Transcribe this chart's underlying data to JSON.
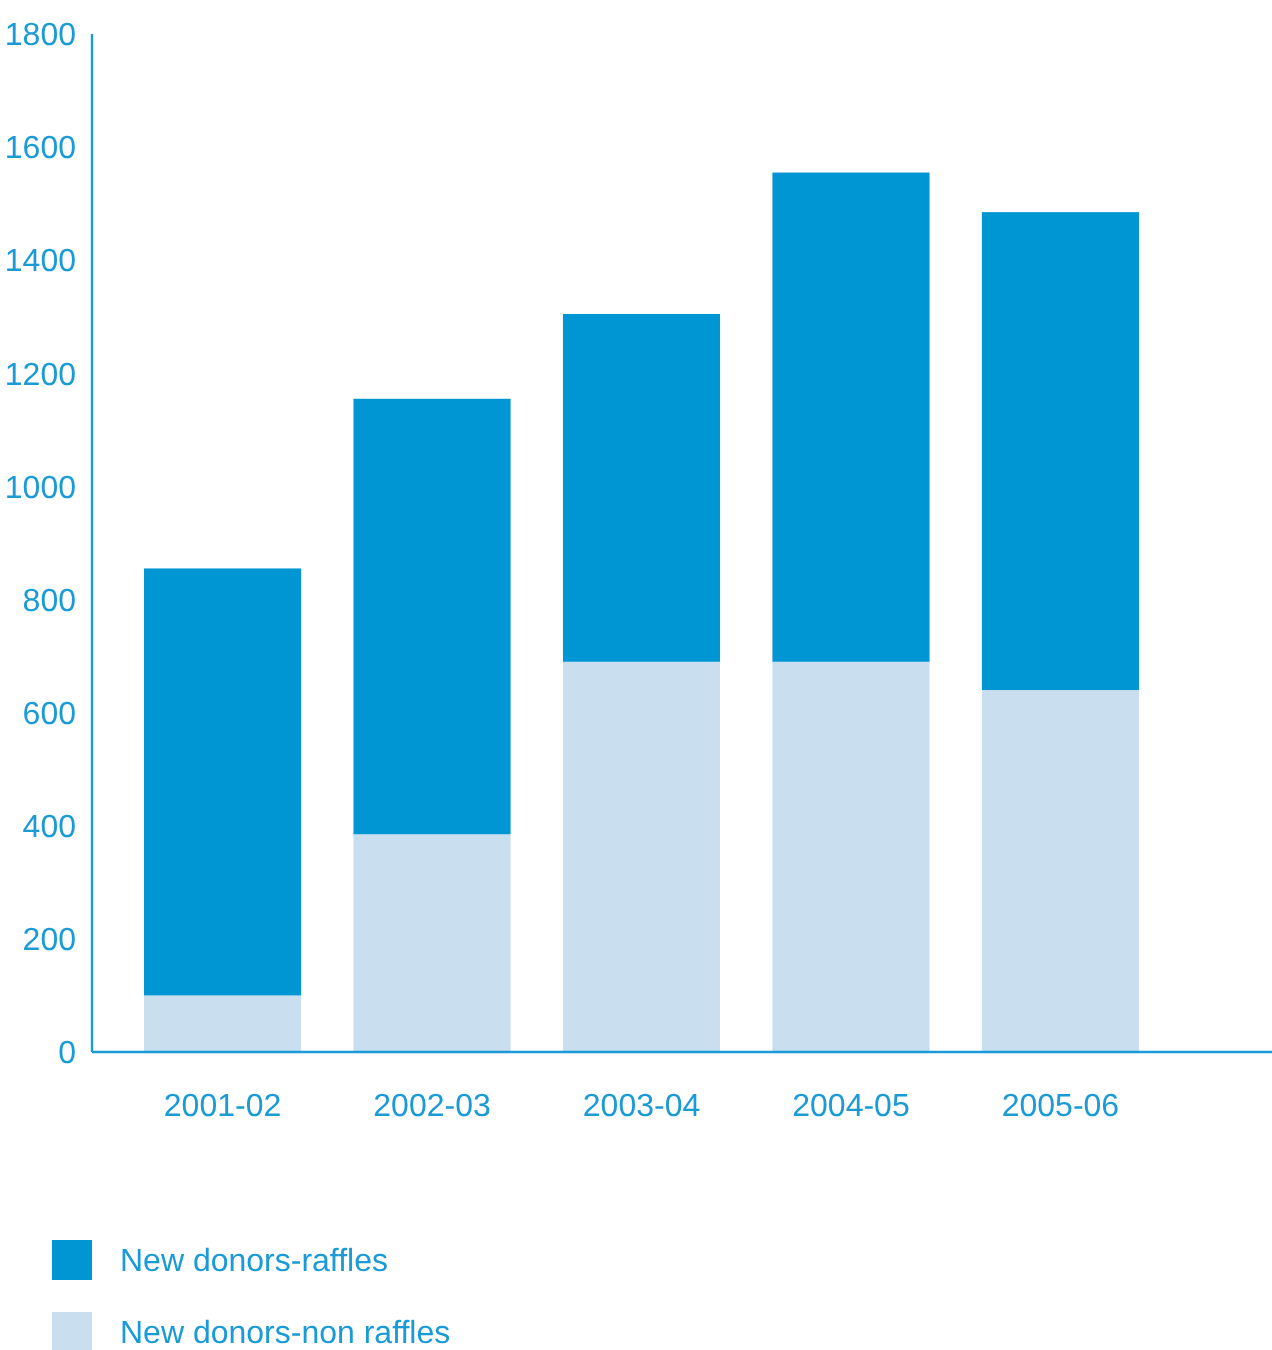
{
  "chart_data": {
    "type": "bar",
    "stacked": true,
    "categories": [
      "2001-02",
      "2002-03",
      "2003-04",
      "2004-05",
      "2005-06"
    ],
    "series": [
      {
        "name": "New donors-non raffles",
        "color": "#c9dff0",
        "values": [
          100,
          385,
          690,
          690,
          640
        ]
      },
      {
        "name": "New donors-raffles",
        "color": "#0095d3",
        "values": [
          755,
          770,
          615,
          865,
          845
        ]
      }
    ],
    "ylim": [
      0,
      1800
    ],
    "yticks": [
      0,
      200,
      400,
      600,
      800,
      1000,
      1200,
      1400,
      1600,
      1800
    ],
    "grid": false,
    "legend": "bottom"
  }
}
